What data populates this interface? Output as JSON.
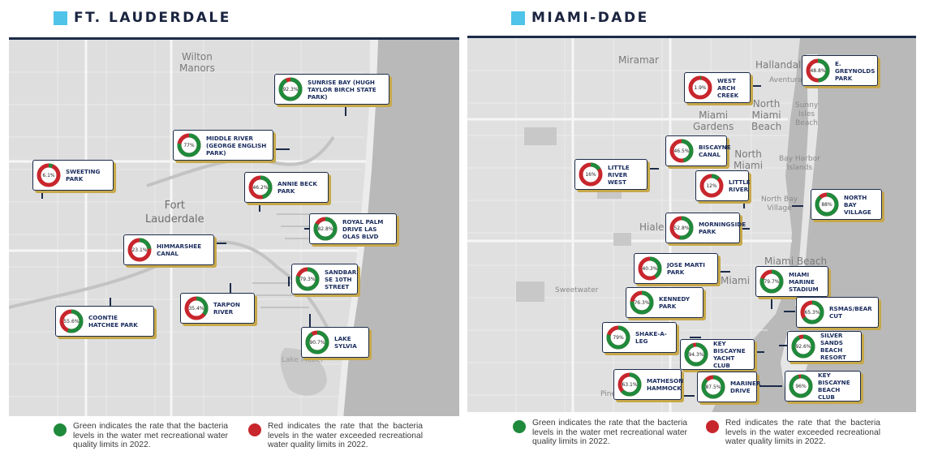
{
  "colors": {
    "green": "#1f8a3b",
    "red": "#c8262d",
    "accent_square": "#4fc3e8",
    "navy": "#1c2b4a",
    "callout_shadow": "#c7a84a"
  },
  "left": {
    "title": "FT. LAUDERDALE",
    "map_labels": {
      "wilton": "Wilton\nManors",
      "fort": "Fort\nLauderdale",
      "lake_mabel": "Lake Mabel"
    },
    "sites": [
      {
        "name": "SUNRISE BAY (HUGH TAYLOR BIRCH STATE PARK)",
        "pct_label": "92.3%",
        "green_pct": 92.3
      },
      {
        "name": "MIDDLE RIVER (GEORGE ENGLISH PARK)",
        "pct_label": "77%",
        "green_pct": 77
      },
      {
        "name": "SWEETING PARK",
        "pct_label": "6.1%",
        "green_pct": 6.1
      },
      {
        "name": "ANNIE BECK PARK",
        "pct_label": "46.2%",
        "green_pct": 46.2
      },
      {
        "name": "ROYAL PALM DRIVE LAS OLAS BLVD",
        "pct_label": "82.8%",
        "green_pct": 82.8
      },
      {
        "name": "HIMMARSHEE CANAL",
        "pct_label": "23.1%",
        "green_pct": 23.1
      },
      {
        "name": "SANDBAR SE 10TH STREET",
        "pct_label": "79.3%",
        "green_pct": 79.3
      },
      {
        "name": "TARPON RIVER",
        "pct_label": "35.4%",
        "green_pct": 35.4
      },
      {
        "name": "COONTIE HATCHEE PARK",
        "pct_label": "55.6%",
        "green_pct": 55.6
      },
      {
        "name": "LAKE SYLVIA",
        "pct_label": "90.7%",
        "green_pct": 90.7
      }
    ],
    "legend_green": "Green indicates the rate that the bacteria levels in the water met recreational water quality limits in 2022.",
    "legend_red": "Red indicates the rate that the bacteria levels in the water exceeded recreational water quality limits in 2022."
  },
  "right": {
    "title": "MIAMI-DADE",
    "map_labels": {
      "miramar": "Miramar",
      "hallandale": "Hallandale",
      "aventura": "Aventura",
      "north_miami_beach": "North\nMiami\nBeach",
      "sunny_isles": "Sunny\nIsles\nBeach",
      "miami_gardens": "Miami\nGardens",
      "north_miami": "North\nMiami",
      "bay_harbor": "Bay Harbor\nIslands",
      "north_bay_village": "North Bay\nVillage",
      "hialeah": "Hiale",
      "miami_beach": "Miami Beach",
      "miami": "Miami",
      "sweetwater": "Sweetwater",
      "pinecrest": "Pine"
    },
    "sites": [
      {
        "name": "WEST ARCH CREEK",
        "pct_label": "1.9%",
        "green_pct": 1.9
      },
      {
        "name": "E. GREYNOLDS PARK",
        "pct_label": "48.8%",
        "green_pct": 48.8
      },
      {
        "name": "BISCAYNE CANAL",
        "pct_label": "46.5%",
        "green_pct": 46.5
      },
      {
        "name": "LITTLE RIVER WEST",
        "pct_label": "16%",
        "green_pct": 16
      },
      {
        "name": "LITTLE RIVER",
        "pct_label": "12%",
        "green_pct": 12
      },
      {
        "name": "NORTH BAY VILLAGE",
        "pct_label": "88%",
        "green_pct": 88
      },
      {
        "name": "MORNINGSIDE PARK",
        "pct_label": "52.8%",
        "green_pct": 52.8
      },
      {
        "name": "JOSE MARTI PARK",
        "pct_label": "40.3%",
        "green_pct": 40.3
      },
      {
        "name": "MIAMI MARINE STADIUM",
        "pct_label": "79.7%",
        "green_pct": 79.7
      },
      {
        "name": "KENNEDY PARK",
        "pct_label": "76.3%",
        "green_pct": 76.3
      },
      {
        "name": "RSMAS/BEAR CUT",
        "pct_label": "65.3%",
        "green_pct": 65.3
      },
      {
        "name": "SHAKE-A-LEG",
        "pct_label": "79%",
        "green_pct": 79
      },
      {
        "name": "KEY BISCAYNE YACHT CLUB",
        "pct_label": "94.3%",
        "green_pct": 94.3
      },
      {
        "name": "SILVER SANDS BEACH RESORT",
        "pct_label": "92.6%",
        "green_pct": 92.6
      },
      {
        "name": "MATHESON HAMMOCK",
        "pct_label": "63.1%",
        "green_pct": 63.1
      },
      {
        "name": "MARINER DRIVE",
        "pct_label": "87.5%",
        "green_pct": 87.5
      },
      {
        "name": "KEY BISCAYNE BEACH CLUB",
        "pct_label": "96%",
        "green_pct": 96
      }
    ],
    "legend_green": "Green indicates the rate that the bacteria levels in the water met recreational water quality limits in 2022.",
    "legend_red": "Red indicates the rate that the bacteria levels in the water exceeded recreational water quality limits in 2022."
  }
}
